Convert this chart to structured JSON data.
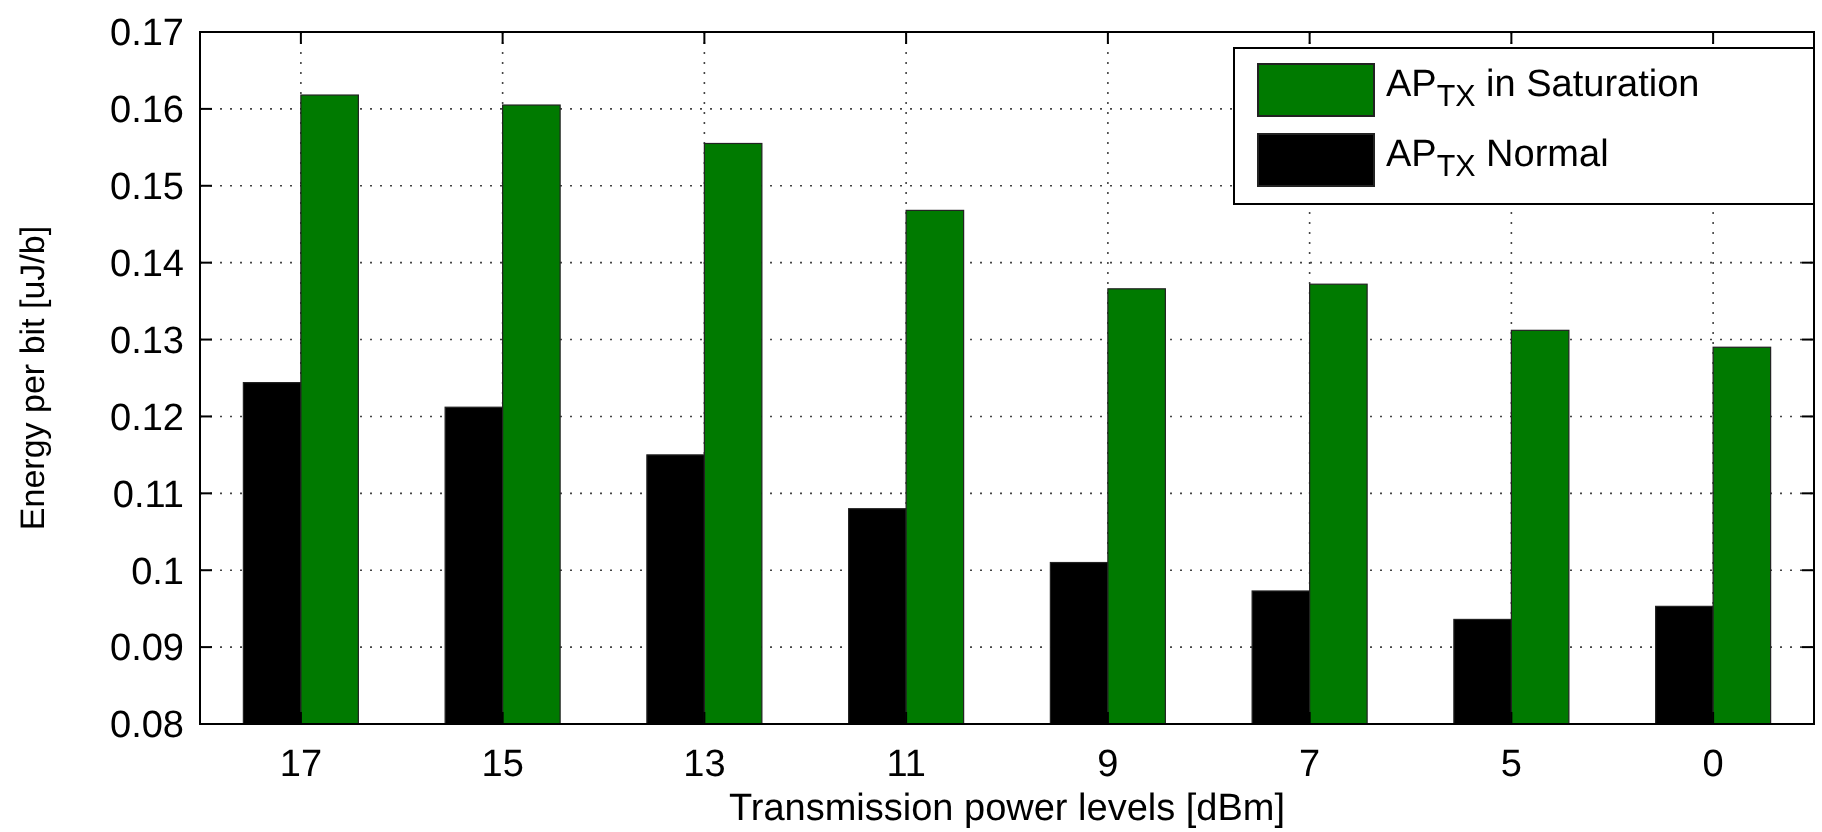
{
  "chart_data": {
    "type": "bar",
    "xlabel": "Transmission power levels [dBm]",
    "ylabel": "Energy per bit [uJ/b]",
    "categories": [
      "17",
      "15",
      "13",
      "11",
      "9",
      "7",
      "5",
      "0"
    ],
    "series": [
      {
        "name": "AP$_{TX}$ Normal",
        "color": "#000000",
        "values": [
          0.1244,
          0.1212,
          0.115,
          0.108,
          0.101,
          0.0973,
          0.0936,
          0.0953
        ]
      },
      {
        "name": "AP$_{TX}$ in Saturation",
        "color": "#007a00",
        "values": [
          0.1618,
          0.1605,
          0.1555,
          0.1468,
          0.1366,
          0.1372,
          0.1312,
          0.129
        ]
      }
    ],
    "ylim": [
      0.08,
      0.17
    ],
    "yticks": [
      0.08,
      0.09,
      0.1,
      0.11,
      0.12,
      0.13,
      0.14,
      0.15,
      0.16,
      0.17
    ],
    "grid": true,
    "legend": "top right"
  }
}
